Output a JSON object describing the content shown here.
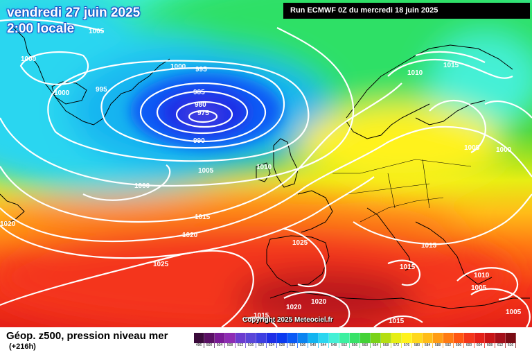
{
  "header": {
    "date_title": "vendredi 27 juin 2025",
    "time_title": "2:00 locale",
    "run_info": "Run ECMWF 0Z du mercredi 18 juin 2025"
  },
  "footer": {
    "product_title": "Géop. z500, pression niveau mer",
    "lead_time": "(+216h)",
    "copyright": "Copyright 2025 Meteociel.fr"
  },
  "scale": {
    "values": [
      496,
      500,
      504,
      508,
      512,
      516,
      520,
      524,
      528,
      532,
      536,
      540,
      544,
      548,
      552,
      556,
      560,
      564,
      568,
      572,
      576,
      580,
      584,
      588,
      592,
      596,
      600,
      604,
      608,
      612,
      616
    ],
    "colors": [
      "#3a0a3a",
      "#5a1064",
      "#7a1a96",
      "#8e2cb4",
      "#6b3ccf",
      "#5a46d8",
      "#3e3ee0",
      "#1e2ee6",
      "#0a3af0",
      "#0a5af5",
      "#0a84f0",
      "#12b4f0",
      "#2ad6f0",
      "#44f0d6",
      "#3cf0a0",
      "#38e268",
      "#44d236",
      "#7ad218",
      "#b4de12",
      "#e6ee14",
      "#fff21c",
      "#ffd81c",
      "#ffbc18",
      "#ff9c14",
      "#ff7a12",
      "#ff5612",
      "#f4361a",
      "#e42018",
      "#c81416",
      "#a4101a",
      "#7a0c14"
    ]
  },
  "isobars": {
    "labels": [
      "1005",
      "1000",
      "995",
      "1000",
      "995",
      "1000",
      "985",
      "980",
      "975",
      "990",
      "1010",
      "1015",
      "1005",
      "1000",
      "1005",
      "1010",
      "1000",
      "1015",
      "1020",
      "1020",
      "1025",
      "1025",
      "1015",
      "1015",
      "1010",
      "1005",
      "1020",
      "1020",
      "1015",
      "1015",
      "1005"
    ]
  }
}
